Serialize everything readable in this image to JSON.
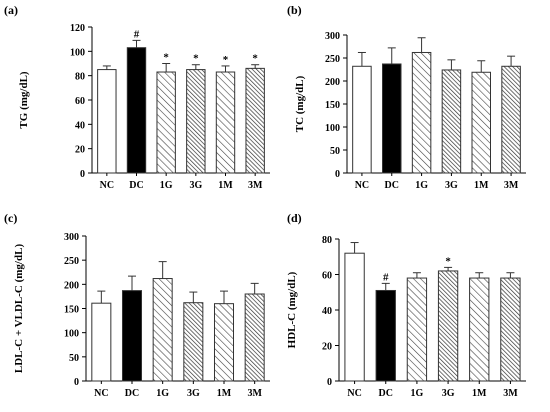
{
  "chart_data": [
    {
      "panel": "(a)",
      "type": "bar",
      "categories": [
        "NC",
        "DC",
        "1G",
        "3G",
        "1M",
        "3M"
      ],
      "values": [
        85,
        103,
        83,
        85,
        83,
        86
      ],
      "errors": [
        3,
        6,
        7,
        4,
        5,
        3
      ],
      "markers": [
        "",
        "#",
        "*",
        "*",
        "*",
        "*"
      ],
      "fills": [
        "white",
        "black",
        "sparse-hatch",
        "dense-hatch",
        "sparse-hatch",
        "dense-hatch"
      ],
      "ylabel": "TG (mg/dL)",
      "xlabel": "",
      "ylim": [
        0,
        120
      ],
      "yticks": [
        "0",
        "20",
        "40",
        "60",
        "80",
        "100",
        "120"
      ],
      "grid": false
    },
    {
      "panel": "(b)",
      "type": "bar",
      "categories": [
        "NC",
        "DC",
        "1G",
        "3G",
        "1M",
        "3M"
      ],
      "values": [
        232,
        237,
        262,
        224,
        219,
        232
      ],
      "errors": [
        30,
        35,
        32,
        22,
        25,
        22
      ],
      "markers": [
        "",
        "",
        "",
        "",
        "",
        ""
      ],
      "fills": [
        "white",
        "black",
        "sparse-hatch",
        "dense-hatch",
        "sparse-hatch",
        "dense-hatch"
      ],
      "ylabel": "TC (mg/dL)",
      "xlabel": "",
      "ylim": [
        0,
        300
      ],
      "yticks": [
        "0",
        "50",
        "100",
        "150",
        "200",
        "250",
        "300"
      ],
      "grid": false
    },
    {
      "panel": "(c)",
      "type": "bar",
      "categories": [
        "NC",
        "DC",
        "1G",
        "3G",
        "1M",
        "3M"
      ],
      "values": [
        161,
        187,
        212,
        162,
        160,
        180
      ],
      "errors": [
        25,
        30,
        35,
        22,
        26,
        22
      ],
      "markers": [
        "",
        "",
        "",
        "",
        "",
        ""
      ],
      "fills": [
        "white",
        "black",
        "sparse-hatch",
        "dense-hatch",
        "sparse-hatch",
        "dense-hatch"
      ],
      "ylabel": "LDL-C + VLDL-C (mg/dL)",
      "xlabel": "",
      "ylim": [
        0,
        300
      ],
      "yticks": [
        "0",
        "50",
        "100",
        "150",
        "200",
        "250",
        "300"
      ],
      "grid": false
    },
    {
      "panel": "(d)",
      "type": "bar",
      "categories": [
        "NC",
        "DC",
        "1G",
        "3G",
        "1M",
        "3M"
      ],
      "values": [
        72,
        51,
        58,
        62,
        58,
        58
      ],
      "errors": [
        6,
        4,
        3,
        2,
        3,
        3
      ],
      "markers": [
        "",
        "#",
        "",
        "*",
        "",
        ""
      ],
      "fills": [
        "white",
        "black",
        "sparse-hatch",
        "dense-hatch",
        "sparse-hatch",
        "dense-hatch"
      ],
      "ylabel": "HDL-C (mg/dL)",
      "xlabel": "",
      "ylim": [
        0,
        80
      ],
      "yticks": [
        "0",
        "20",
        "40",
        "60",
        "80"
      ],
      "grid": false
    }
  ],
  "colors": {
    "ink": "#000000",
    "bar_outline": "#333333",
    "open_bar": "#ffffff",
    "solid_bar": "#000000",
    "hatch_line": "#444444"
  }
}
